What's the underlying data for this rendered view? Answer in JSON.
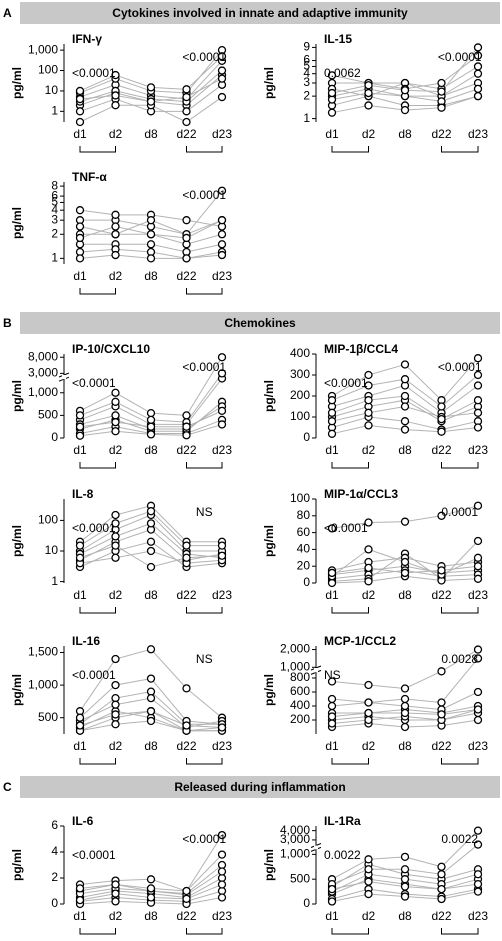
{
  "sections": [
    {
      "letter": "A",
      "title": "Cytokines involved in innate and adaptive immunity"
    },
    {
      "letter": "B",
      "title": "Chemokines"
    },
    {
      "letter": "C",
      "title": "Released during inflammation"
    }
  ],
  "chart_data": [
    {
      "type": "line",
      "title": "IFN-γ",
      "ylabel": "pg/ml",
      "yscale": "log",
      "ylim": [
        0.3,
        2000
      ],
      "yticks": [
        1,
        10,
        100,
        {
          "value": 1000,
          "label": "1,000"
        }
      ],
      "annotations": [
        "<0.0001",
        "<0.0001"
      ],
      "categories": [
        "d1",
        "d2",
        "d8",
        "d22",
        "d23"
      ],
      "line_color": "#b3b3b3",
      "marker_color": "#000000",
      "series": [
        {
          "values": [
            2,
            8,
            3,
            2,
            60
          ]
        },
        {
          "values": [
            5,
            20,
            6,
            4,
            300
          ]
        },
        {
          "values": [
            1,
            4,
            1,
            1,
            20
          ]
        },
        {
          "values": [
            8,
            40,
            10,
            8,
            1000
          ]
        },
        {
          "values": [
            3,
            10,
            4,
            3,
            100
          ]
        },
        {
          "values": [
            0.3,
            2,
            2,
            0.3,
            5
          ]
        },
        {
          "values": [
            10,
            60,
            15,
            12,
            500
          ]
        },
        {
          "values": [
            4,
            6,
            3,
            5,
            40
          ]
        }
      ]
    },
    {
      "type": "line",
      "title": "IL-15",
      "ylabel": "pg/ml",
      "yscale": "log",
      "ylim": [
        0.9,
        10
      ],
      "yticks": [
        1,
        2,
        3,
        4,
        5,
        6,
        9
      ],
      "annotations": [
        "0.0062",
        "<0.0001"
      ],
      "categories": [
        "d1",
        "d2",
        "d8",
        "d22",
        "d23"
      ],
      "line_color": "#b3b3b3",
      "marker_color": "#000000",
      "series": [
        {
          "values": [
            2,
            2.5,
            2,
            2,
            3
          ]
        },
        {
          "values": [
            3,
            3,
            3,
            2.5,
            5
          ]
        },
        {
          "values": [
            1.5,
            2,
            1.5,
            1.5,
            2
          ]
        },
        {
          "values": [
            2.5,
            2,
            3,
            2,
            4
          ]
        },
        {
          "values": [
            3.8,
            3,
            2.5,
            3,
            7
          ]
        },
        {
          "values": [
            1.8,
            2.2,
            2,
            1.7,
            2.5
          ]
        },
        {
          "values": [
            2.2,
            2.8,
            2.4,
            2.3,
            9
          ]
        },
        {
          "values": [
            1.2,
            1.5,
            1.3,
            1.4,
            2
          ]
        }
      ]
    },
    {
      "type": "line",
      "title": "TNF-α",
      "ylabel": "pg/ml",
      "yscale": "log",
      "ylim": [
        0.85,
        9
      ],
      "yticks": [
        1,
        2,
        3,
        4,
        5,
        6,
        8
      ],
      "annotations": [
        "<0.0001"
      ],
      "categories": [
        "d1",
        "d2",
        "d8",
        "d22",
        "d23"
      ],
      "line_color": "#b3b3b3",
      "marker_color": "#000000",
      "series": [
        {
          "values": [
            2,
            2,
            2,
            1.5,
            2
          ]
        },
        {
          "values": [
            3,
            3,
            2.5,
            2,
            3
          ]
        },
        {
          "values": [
            1.5,
            1.5,
            1.5,
            1.2,
            1.5
          ]
        },
        {
          "values": [
            4,
            3.5,
            3.5,
            3,
            2.5
          ]
        },
        {
          "values": [
            2.5,
            2,
            3,
            2,
            7
          ]
        },
        {
          "values": [
            1.2,
            1.3,
            1.2,
            1,
            1.2
          ]
        },
        {
          "values": [
            1.8,
            2.5,
            2,
            1.8,
            3
          ]
        },
        {
          "values": [
            1,
            1.1,
            1,
            1,
            1.1
          ]
        }
      ]
    },
    {
      "type": "line",
      "title": "IP-10/CXCL10",
      "ylabel": "pg/ml",
      "yscale": "broken",
      "ylim": [
        0,
        9000
      ],
      "ybreak": [
        1300,
        2500
      ],
      "yticks": [
        0,
        500,
        {
          "value": 1000,
          "label": "1,000"
        },
        {
          "value": 3000,
          "label": "3,000"
        },
        {
          "value": 8000,
          "label": "8,000"
        }
      ],
      "annotations": [
        "<0.0001",
        "<0.0001"
      ],
      "categories": [
        "d1",
        "d2",
        "d8",
        "d22",
        "d23"
      ],
      "line_color": "#b3b3b3",
      "marker_color": "#000000",
      "series": [
        {
          "values": [
            200,
            400,
            150,
            150,
            800
          ]
        },
        {
          "values": [
            400,
            700,
            300,
            300,
            1500
          ]
        },
        {
          "values": [
            100,
            250,
            100,
            100,
            400
          ]
        },
        {
          "values": [
            600,
            1000,
            550,
            500,
            8000
          ]
        },
        {
          "values": [
            300,
            500,
            200,
            200,
            700
          ]
        },
        {
          "values": [
            50,
            150,
            80,
            60,
            300
          ]
        },
        {
          "values": [
            500,
            800,
            400,
            350,
            3000
          ]
        },
        {
          "values": [
            250,
            350,
            250,
            250,
            600
          ]
        }
      ]
    },
    {
      "type": "line",
      "title": "MIP-1β/CCL4",
      "ylabel": "pg/ml",
      "yscale": "linear",
      "ylim": [
        0,
        400
      ],
      "yticks": [
        0,
        100,
        200,
        300,
        400
      ],
      "annotations": [
        "<0.0001",
        "<0.0001"
      ],
      "categories": [
        "d1",
        "d2",
        "d8",
        "d22",
        "d23"
      ],
      "line_color": "#b3b3b3",
      "marker_color": "#000000",
      "series": [
        {
          "values": [
            100,
            150,
            180,
            80,
            150
          ]
        },
        {
          "values": [
            150,
            200,
            250,
            120,
            250
          ]
        },
        {
          "values": [
            50,
            100,
            80,
            40,
            80
          ]
        },
        {
          "values": [
            200,
            300,
            350,
            180,
            380
          ]
        },
        {
          "values": [
            80,
            120,
            150,
            100,
            120
          ]
        },
        {
          "values": [
            20,
            60,
            40,
            30,
            50
          ]
        },
        {
          "values": [
            120,
            180,
            200,
            90,
            180
          ]
        },
        {
          "values": [
            180,
            250,
            280,
            150,
            300
          ]
        }
      ]
    },
    {
      "type": "line",
      "title": "IL-8",
      "ylabel": "pg/ml",
      "yscale": "log",
      "ylim": [
        0.9,
        500
      ],
      "yticks": [
        1,
        10,
        100
      ],
      "annotations": [
        "<0.0001",
        "NS"
      ],
      "categories": [
        "d1",
        "d2",
        "d8",
        "d22",
        "d23"
      ],
      "line_color": "#b3b3b3",
      "marker_color": "#000000",
      "series": [
        {
          "values": [
            5,
            20,
            50,
            5,
            8
          ]
        },
        {
          "values": [
            10,
            50,
            150,
            10,
            10
          ]
        },
        {
          "values": [
            3,
            10,
            20,
            3,
            4
          ]
        },
        {
          "values": [
            20,
            150,
            300,
            20,
            20
          ]
        },
        {
          "values": [
            8,
            30,
            80,
            8,
            6
          ]
        },
        {
          "values": [
            4,
            6,
            10,
            4,
            5
          ]
        },
        {
          "values": [
            15,
            80,
            200,
            15,
            15
          ]
        },
        {
          "values": [
            6,
            15,
            3,
            6,
            7
          ]
        }
      ]
    },
    {
      "type": "line",
      "title": "MIP-1α/CCL3",
      "ylabel": "pg/ml",
      "yscale": "linear",
      "ylim": [
        0,
        100
      ],
      "yticks": [
        0,
        20,
        40,
        60,
        80,
        100
      ],
      "annotations": [
        "<0.0001",
        "0.0001"
      ],
      "categories": [
        "d1",
        "d2",
        "d8",
        "d22",
        "d23"
      ],
      "line_color": "#b3b3b3",
      "marker_color": "#000000",
      "series": [
        {
          "values": [
            65,
            72,
            73,
            80,
            92
          ]
        },
        {
          "values": [
            10,
            15,
            20,
            12,
            15
          ]
        },
        {
          "values": [
            5,
            10,
            15,
            8,
            10
          ]
        },
        {
          "values": [
            2,
            5,
            35,
            5,
            50
          ]
        },
        {
          "values": [
            15,
            25,
            30,
            20,
            25
          ]
        },
        {
          "values": [
            0,
            2,
            8,
            3,
            5
          ]
        },
        {
          "values": [
            8,
            40,
            25,
            10,
            30
          ]
        },
        {
          "values": [
            12,
            18,
            12,
            15,
            20
          ]
        }
      ]
    },
    {
      "type": "line",
      "title": "IL-16",
      "ylabel": "pg/ml",
      "yscale": "linear",
      "ylim": [
        250,
        1600
      ],
      "yticks": [
        500,
        {
          "value": 1000,
          "label": "1,000"
        },
        {
          "value": 1500,
          "label": "1,500"
        }
      ],
      "annotations": [
        "<0.0001",
        "NS"
      ],
      "categories": [
        "d1",
        "d2",
        "d8",
        "d22",
        "d23"
      ],
      "line_color": "#b3b3b3",
      "marker_color": "#000000",
      "series": [
        {
          "values": [
            300,
            500,
            600,
            300,
            350
          ]
        },
        {
          "values": [
            400,
            800,
            900,
            400,
            400
          ]
        },
        {
          "values": [
            350,
            600,
            500,
            300,
            300
          ]
        },
        {
          "values": [
            600,
            1400,
            1550,
            950,
            500
          ]
        },
        {
          "values": [
            450,
            700,
            800,
            350,
            450
          ]
        },
        {
          "values": [
            300,
            400,
            450,
            300,
            300
          ]
        },
        {
          "values": [
            500,
            1000,
            1100,
            450,
            400
          ]
        },
        {
          "values": [
            380,
            550,
            600,
            380,
            350
          ]
        }
      ]
    },
    {
      "type": "line",
      "title": "MCP-1/CCL2",
      "ylabel": "pg/ml",
      "yscale": "broken",
      "ylim": [
        0,
        2200
      ],
      "ybreak": [
        880,
        960
      ],
      "yticks": [
        200,
        400,
        600,
        800,
        {
          "value": 1000,
          "label": "1,000"
        },
        {
          "value": 2000,
          "label": "2,000"
        }
      ],
      "annotations": [
        "NS",
        "0.0028"
      ],
      "categories": [
        "d1",
        "d2",
        "d8",
        "d22",
        "d23"
      ],
      "line_color": "#b3b3b3",
      "marker_color": "#000000",
      "series": [
        {
          "values": [
            200,
            250,
            200,
            200,
            350
          ]
        },
        {
          "values": [
            300,
            300,
            350,
            300,
            400
          ]
        },
        {
          "values": [
            100,
            150,
            100,
            120,
            200
          ]
        },
        {
          "values": [
            750,
            700,
            650,
            900,
            2000
          ]
        },
        {
          "values": [
            400,
            450,
            400,
            350,
            600
          ]
        },
        {
          "values": [
            150,
            200,
            250,
            200,
            300
          ]
        },
        {
          "values": [
            500,
            450,
            500,
            450,
            1500
          ]
        },
        {
          "values": [
            250,
            300,
            300,
            280,
            350
          ]
        }
      ]
    },
    {
      "type": "line",
      "title": "IL-6",
      "ylabel": "pg/ml",
      "yscale": "linear",
      "ylim": [
        0,
        6
      ],
      "yticks": [
        0,
        2,
        4,
        6
      ],
      "annotations": [
        "<0.0001",
        "<0.0001"
      ],
      "categories": [
        "d1",
        "d2",
        "d8",
        "d22",
        "d23"
      ],
      "line_color": "#b3b3b3",
      "marker_color": "#000000",
      "series": [
        {
          "values": [
            0.5,
            1,
            0.8,
            0.5,
            2
          ]
        },
        {
          "values": [
            1,
            1.5,
            1,
            0.8,
            3
          ]
        },
        {
          "values": [
            0.2,
            0.5,
            0.3,
            0.2,
            1
          ]
        },
        {
          "values": [
            1.5,
            1.8,
            1.9,
            1,
            5.3
          ]
        },
        {
          "values": [
            0.8,
            1.2,
            1,
            0.7,
            2.5
          ]
        },
        {
          "values": [
            0,
            0.2,
            0.1,
            0,
            0.5
          ]
        },
        {
          "values": [
            1.2,
            1.5,
            1.2,
            1,
            3.8
          ]
        },
        {
          "values": [
            0.3,
            0.8,
            0.5,
            0.4,
            1.5
          ]
        }
      ]
    },
    {
      "type": "line",
      "title": "IL-1Ra",
      "ylabel": "pg/ml",
      "yscale": "broken",
      "ylim": [
        0,
        4500
      ],
      "ybreak": [
        1100,
        2400
      ],
      "yticks": [
        0,
        500,
        {
          "value": 1000,
          "label": "1,000"
        },
        {
          "value": 3000,
          "label": "3,000"
        },
        {
          "value": 4000,
          "label": "4,000"
        }
      ],
      "annotations": [
        "0.0022",
        "0.0022"
      ],
      "categories": [
        "d1",
        "d2",
        "d8",
        "d22",
        "d23"
      ],
      "line_color": "#b3b3b3",
      "marker_color": "#000000",
      "series": [
        {
          "values": [
            200,
            500,
            400,
            300,
            500
          ]
        },
        {
          "values": [
            350,
            800,
            600,
            500,
            700
          ]
        },
        {
          "values": [
            100,
            300,
            200,
            150,
            300
          ]
        },
        {
          "values": [
            500,
            900,
            950,
            750,
            4000
          ]
        },
        {
          "values": [
            250,
            600,
            500,
            400,
            600
          ]
        },
        {
          "values": [
            50,
            200,
            150,
            100,
            250
          ]
        },
        {
          "values": [
            400,
            700,
            700,
            600,
            2500
          ]
        },
        {
          "values": [
            300,
            450,
            350,
            300,
            400
          ]
        }
      ]
    }
  ]
}
